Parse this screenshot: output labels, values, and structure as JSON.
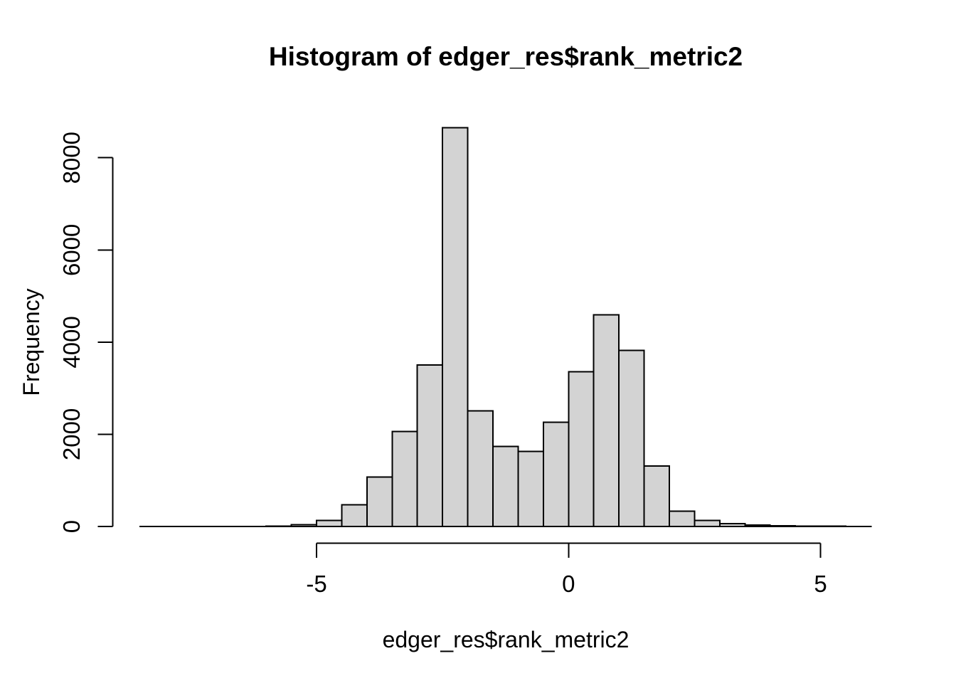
{
  "colors": {
    "background": "#ffffff",
    "bar_fill": "#d3d3d3",
    "bar_stroke": "#000000",
    "axis_color": "#000000",
    "text_color": "#000000"
  },
  "chart_data": {
    "type": "bar",
    "subtype": "histogram",
    "title": "Histogram of edger_res$rank_metric2",
    "xlabel": "edger_res$rank_metric2",
    "ylabel": "Frequency",
    "xlim": [
      -8.5,
      6
    ],
    "ylim": [
      0,
      8650
    ],
    "grid": false,
    "legend": false,
    "bin_width": 0.5,
    "breaks": [
      -8.5,
      -8,
      -7.5,
      -7,
      -6.5,
      -6,
      -5.5,
      -5,
      -4.5,
      -4,
      -3.5,
      -3,
      -2.5,
      -2,
      -1.5,
      -1,
      -0.5,
      0,
      0.5,
      1,
      1.5,
      2,
      2.5,
      3,
      3.5,
      4,
      4.5,
      5,
      5.5,
      6
    ],
    "counts": [
      1,
      1,
      1,
      2,
      2,
      5,
      40,
      130,
      470,
      1075,
      2060,
      3500,
      8650,
      2510,
      1735,
      1630,
      2260,
      3360,
      4590,
      3820,
      1310,
      330,
      130,
      60,
      30,
      15,
      8,
      5,
      3
    ],
    "x_ticks": [
      {
        "value": -5,
        "label": "-5"
      },
      {
        "value": 0,
        "label": "0"
      },
      {
        "value": 5,
        "label": "5"
      }
    ],
    "y_ticks": [
      {
        "value": 0,
        "label": "0"
      },
      {
        "value": 2000,
        "label": "2000"
      },
      {
        "value": 4000,
        "label": "4000"
      },
      {
        "value": 6000,
        "label": "6000"
      },
      {
        "value": 8000,
        "label": "8000"
      }
    ]
  }
}
